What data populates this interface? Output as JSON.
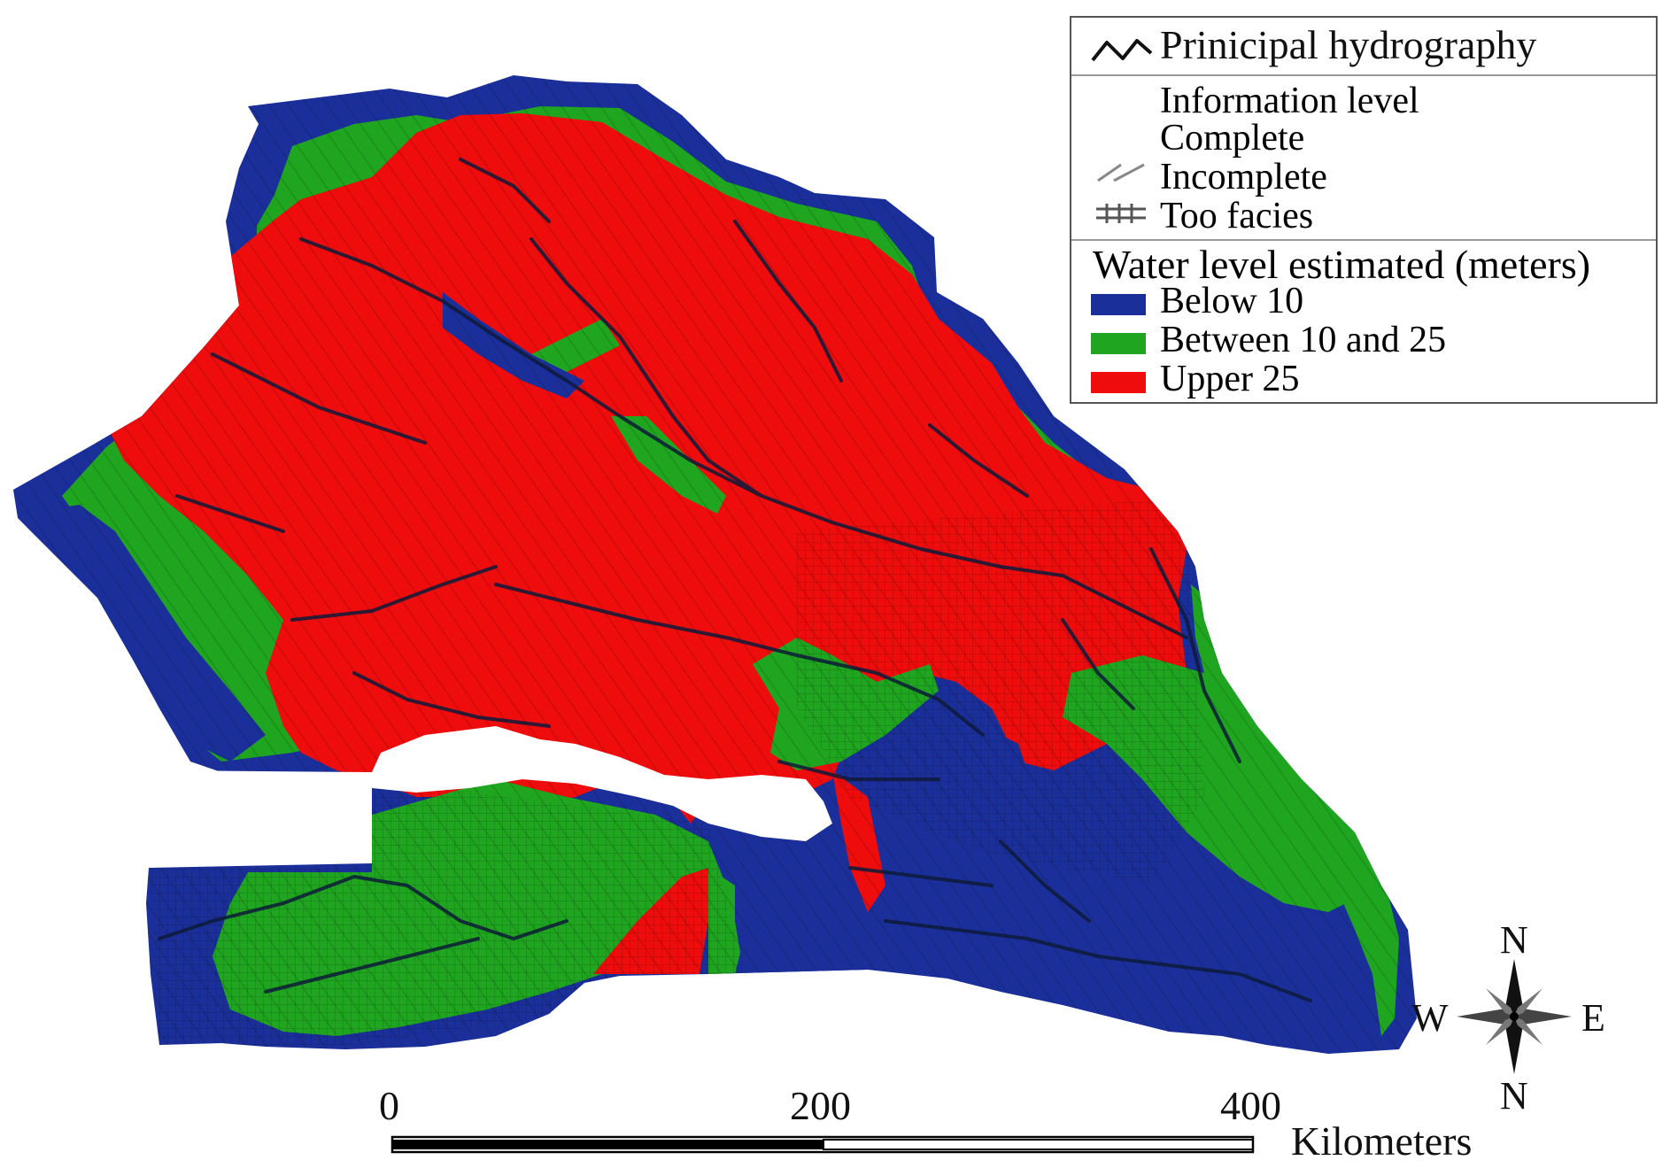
{
  "legend": {
    "hydrography_label": "Prinicipal hydrography",
    "information_level_title": "Information level",
    "complete_label": "Complete",
    "incomplete_label": "Incomplete",
    "too_facies_label": "Too facies",
    "water_level_title": "Water level estimated (meters)",
    "classes": [
      {
        "label": "Below 10",
        "color": "#1b2f9a"
      },
      {
        "label": "Between 10 and 25",
        "color": "#1fa51f"
      },
      {
        "label": "Upper 25",
        "color": "#ee0c0c"
      }
    ]
  },
  "scale_bar": {
    "ticks": [
      "0",
      "200",
      "400"
    ],
    "unit": "Kilometers"
  },
  "compass": {
    "north": "N",
    "west": "W",
    "east": "E",
    "bottom": "N"
  },
  "colors": {
    "blue": "#1b2f9a",
    "green": "#1fa51f",
    "red": "#ee0c0c",
    "river": "#0d1b3a"
  }
}
